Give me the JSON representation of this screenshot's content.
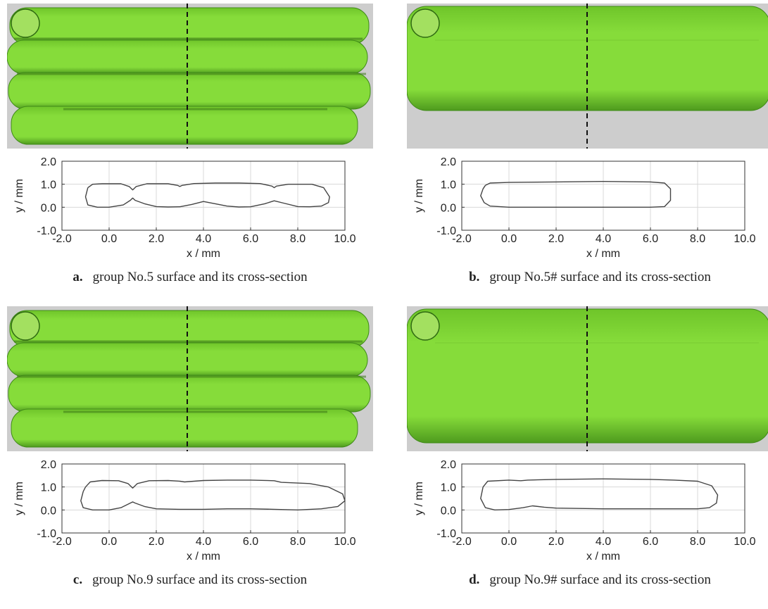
{
  "panels": [
    {
      "id": "a",
      "label": "a.",
      "caption": "group No.5 surface and its cross-section",
      "surface": {
        "color": "#86dc3a",
        "background": "#cdcdcd",
        "variant": "four-bead"
      },
      "chart_data": {
        "type": "line",
        "xlabel": "x / mm",
        "ylabel": "y / mm",
        "xlim": [
          -2.0,
          10.0
        ],
        "ylim": [
          -1.0,
          2.0
        ],
        "xticks": [
          "-2.0",
          "0.0",
          "2.0",
          "4.0",
          "6.0",
          "8.0",
          "10.0"
        ],
        "yticks": [
          "-1.0",
          "0.0",
          "1.0",
          "2.0"
        ],
        "grid": true,
        "series": [
          {
            "x": [
              -0.9,
              -0.7,
              -0.3,
              0.5,
              0.85,
              1.0,
              1.15,
              1.6,
              2.5,
              2.9,
              3.0,
              3.1,
              3.6,
              4.5,
              5.0,
              5.5,
              6.4,
              6.9,
              7.0,
              7.1,
              7.6,
              8.6,
              9.1,
              9.35,
              9.3,
              9.0,
              8.5,
              8.0,
              7.4,
              7.0,
              6.6,
              6.0,
              5.5,
              5.0,
              4.5,
              4.0,
              3.5,
              3.0,
              2.5,
              2.0,
              1.5,
              1.1,
              1.0,
              0.9,
              0.6,
              0.0,
              -0.5,
              -0.9,
              -1.0,
              -0.9
            ],
            "y": [
              0.85,
              1.0,
              1.02,
              1.02,
              0.9,
              0.75,
              0.9,
              1.02,
              1.02,
              0.95,
              0.9,
              0.95,
              1.03,
              1.05,
              1.05,
              1.05,
              1.03,
              0.92,
              0.85,
              0.92,
              1.0,
              1.0,
              0.85,
              0.45,
              0.2,
              0.05,
              0.02,
              0.03,
              0.18,
              0.28,
              0.15,
              0.02,
              0.01,
              0.05,
              0.15,
              0.25,
              0.12,
              0.02,
              0.01,
              0.03,
              0.15,
              0.3,
              0.4,
              0.3,
              0.1,
              0.0,
              0.0,
              0.1,
              0.45,
              0.85
            ]
          }
        ]
      }
    },
    {
      "id": "b",
      "label": "b.",
      "caption": "group No.5# surface and its cross-section",
      "surface": {
        "color": "#86dc3a",
        "background": "#cdcdcd",
        "variant": "flat"
      },
      "chart_data": {
        "type": "line",
        "xlabel": "x / mm",
        "ylabel": "y / mm",
        "xlim": [
          -2.0,
          10.0
        ],
        "ylim": [
          -1.0,
          2.0
        ],
        "xticks": [
          "-2.0",
          "0.0",
          "2.0",
          "4.0",
          "6.0",
          "8.0",
          "10.0"
        ],
        "yticks": [
          "-1.0",
          "0.0",
          "1.0",
          "2.0"
        ],
        "grid": true,
        "series": [
          {
            "x": [
              -1.0,
              -0.8,
              0.0,
              2.0,
              4.0,
              6.0,
              6.6,
              6.85,
              6.85,
              6.6,
              6.0,
              4.0,
              2.0,
              0.0,
              -0.8,
              -1.05,
              -1.2,
              -1.1,
              -1.0
            ],
            "y": [
              0.95,
              1.05,
              1.08,
              1.1,
              1.12,
              1.1,
              1.05,
              0.8,
              0.3,
              0.03,
              0.0,
              0.0,
              0.0,
              0.0,
              0.05,
              0.2,
              0.5,
              0.8,
              0.95
            ]
          }
        ]
      }
    },
    {
      "id": "c",
      "label": "c.",
      "caption": "group No.9 surface and its cross-section",
      "surface": {
        "color": "#86dc3a",
        "background": "#cdcdcd",
        "variant": "four-bead"
      },
      "chart_data": {
        "type": "line",
        "xlabel": "x / mm",
        "ylabel": "y / mm",
        "xlim": [
          -2.0,
          10.0
        ],
        "ylim": [
          -1.0,
          2.0
        ],
        "xticks": [
          "-2.0",
          "0.0",
          "2.0",
          "4.0",
          "6.0",
          "8.0",
          "10.0"
        ],
        "yticks": [
          "-1.0",
          "0.0",
          "1.0",
          "2.0"
        ],
        "grid": true,
        "series": [
          {
            "x": [
              -1.0,
              -0.8,
              -0.3,
              0.4,
              0.8,
              1.0,
              1.2,
              1.7,
              2.5,
              3.0,
              3.2,
              4.0,
              5.0,
              6.0,
              7.0,
              7.3,
              8.5,
              9.3,
              9.9,
              10.0,
              9.7,
              9.0,
              8.0,
              7.0,
              6.0,
              5.0,
              4.0,
              3.0,
              2.0,
              1.5,
              1.1,
              1.0,
              0.9,
              0.5,
              0.0,
              -0.7,
              -1.1,
              -1.2,
              -1.1,
              -1.0
            ],
            "y": [
              1.0,
              1.22,
              1.28,
              1.27,
              1.15,
              0.95,
              1.15,
              1.27,
              1.28,
              1.25,
              1.22,
              1.28,
              1.3,
              1.3,
              1.27,
              1.2,
              1.15,
              1.0,
              0.7,
              0.4,
              0.15,
              0.05,
              0.0,
              0.03,
              0.05,
              0.05,
              0.03,
              0.03,
              0.05,
              0.15,
              0.3,
              0.35,
              0.3,
              0.1,
              0.0,
              0.0,
              0.1,
              0.4,
              0.8,
              1.0
            ]
          }
        ]
      }
    },
    {
      "id": "d",
      "label": "d.",
      "caption": "group No.9# surface and its cross-section",
      "surface": {
        "color": "#86dc3a",
        "background": "#cdcdcd",
        "variant": "flat-wide"
      },
      "chart_data": {
        "type": "line",
        "xlabel": "x / mm",
        "ylabel": "y / mm",
        "xlim": [
          -2.0,
          10.0
        ],
        "ylim": [
          -1.0,
          2.0
        ],
        "xticks": [
          "-2.0",
          "0.0",
          "2.0",
          "4.0",
          "6.0",
          "8.0",
          "10.0"
        ],
        "yticks": [
          "-1.0",
          "0.0",
          "1.0",
          "2.0"
        ],
        "grid": true,
        "series": [
          {
            "x": [
              -1.1,
              -0.9,
              0.0,
              0.5,
              0.8,
              2.0,
              4.0,
              6.0,
              7.0,
              8.0,
              8.6,
              8.85,
              8.8,
              8.5,
              8.0,
              6.0,
              4.0,
              2.0,
              1.5,
              1.0,
              0.6,
              0.0,
              -0.6,
              -1.0,
              -1.2,
              -1.1
            ],
            "y": [
              1.0,
              1.25,
              1.3,
              1.27,
              1.3,
              1.33,
              1.35,
              1.33,
              1.3,
              1.25,
              1.05,
              0.65,
              0.3,
              0.1,
              0.05,
              0.05,
              0.05,
              0.08,
              0.12,
              0.18,
              0.1,
              0.02,
              0.0,
              0.1,
              0.5,
              1.0
            ]
          }
        ]
      }
    }
  ]
}
